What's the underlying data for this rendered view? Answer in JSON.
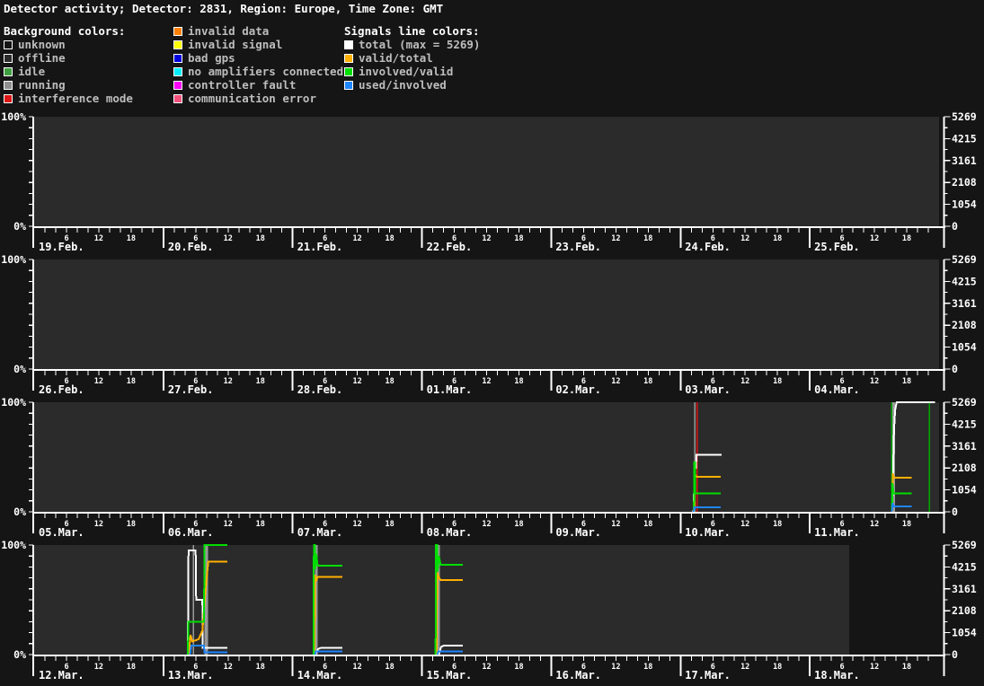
{
  "header": {
    "title": "Detector activity; Detector: 2831, Region: Europe, Time Zone: GMT"
  },
  "legend": {
    "background_header": "Background colors:",
    "signals_header": "Signals line colors:",
    "background_items_col1": [
      {
        "label": "unknown",
        "color": "#151515"
      },
      {
        "label": "offline",
        "color": "#2b2b2b"
      },
      {
        "label": "idle",
        "color": "#3ea03e"
      },
      {
        "label": "running",
        "color": "#8f8f8f"
      },
      {
        "label": "interference mode",
        "color": "#dd1515"
      }
    ],
    "background_items_col2": [
      {
        "label": "invalid data",
        "color": "#ff8000"
      },
      {
        "label": "invalid signal",
        "color": "#ffff00"
      },
      {
        "label": "bad gps",
        "color": "#0000dd"
      },
      {
        "label": "no amplifiers connected",
        "color": "#00eeff"
      },
      {
        "label": "controller fault",
        "color": "#ff00ff"
      },
      {
        "label": "communication error",
        "color": "#f4517c"
      }
    ],
    "signal_items": [
      {
        "label": "total (max = 5269)",
        "color": "#ffffff"
      },
      {
        "label": "valid/total",
        "color": "#ffb000"
      },
      {
        "label": "involved/valid",
        "color": "#00dd00"
      },
      {
        "label": "used/involved",
        "color": "#1e86ff"
      }
    ]
  },
  "colors": {
    "page_bg": "#151515",
    "offline": "#2b2b2b",
    "unknown": "#151515",
    "axis": "#ffffff",
    "total": "#ffffff",
    "valid_total": "#ffb000",
    "involved_valid": "#00dd00",
    "used_involved": "#1e86ff",
    "running_band": "#9a9a9a",
    "interference": "#dd1515",
    "idle_line": "#00a800"
  },
  "chart_data": {
    "type": "line",
    "description": "Detector activity over four weekly panels; left axis percent 0-100%, right axis absolute signal count (max = 5269), x ticks every 2 hours with labels at 6/12/18, one label per day.",
    "y_left": {
      "min_label": "0%",
      "max_label": "100%"
    },
    "y_right_labels": [
      "0",
      "1054",
      "2108",
      "3161",
      "4215",
      "5269"
    ],
    "y_right_max": 5269,
    "hour_ticks": [
      {
        "h": 6,
        "label": "6"
      },
      {
        "h": 12,
        "label": "12"
      },
      {
        "h": 18,
        "label": "18"
      }
    ],
    "panels": [
      {
        "name": "week-1",
        "dates": [
          "19.Feb.",
          "20.Feb.",
          "21.Feb.",
          "22.Feb.",
          "23.Feb.",
          "24.Feb.",
          "25.Feb."
        ],
        "bg": [
          {
            "from": 0,
            "to": 7,
            "key": "offline"
          }
        ],
        "vlines": [],
        "series": []
      },
      {
        "name": "week-2",
        "dates": [
          "26.Feb.",
          "27.Feb.",
          "28.Feb.",
          "01.Mar.",
          "02.Mar.",
          "03.Mar.",
          "04.Mar."
        ],
        "bg": [
          {
            "from": 0,
            "to": 7,
            "key": "offline"
          }
        ],
        "vlines": [],
        "series": []
      },
      {
        "name": "week-3",
        "dates": [
          "05.Mar.",
          "06.Mar.",
          "07.Mar.",
          "08.Mar.",
          "09.Mar.",
          "10.Mar.",
          "11.Mar."
        ],
        "bg": [
          {
            "from": 0,
            "to": 7,
            "key": "offline"
          }
        ],
        "vlines": [
          {
            "day": 5.11,
            "color_key": "running_band",
            "width": 1.5
          },
          {
            "day": 5.127,
            "color_key": "interference",
            "width": 1.5
          },
          {
            "day": 6.633,
            "color_key": "idle_line",
            "width": 1.5
          },
          {
            "day": 6.65,
            "color_key": "running_band",
            "width": 3
          },
          {
            "day": 6.924,
            "color_key": "idle_line",
            "width": 1.5
          }
        ],
        "series": [
          {
            "name": "total",
            "color_key": "total",
            "segments": [
              [
                [
                  5.1,
                  0
                ],
                [
                  5.105,
                  21
                ],
                [
                  5.11,
                  21
                ],
                [
                  5.113,
                  40
                ],
                [
                  5.119,
                  40
                ],
                [
                  5.124,
                  52
                ],
                [
                  5.317,
                  52
                ]
              ],
              [
                [
                  6.638,
                  0
                ],
                [
                  6.645,
                  40
                ],
                [
                  6.652,
                  75
                ],
                [
                  6.66,
                  93
                ],
                [
                  6.672,
                  100
                ],
                [
                  6.968,
                  100
                ]
              ]
            ]
          },
          {
            "name": "valid/total",
            "color_key": "valid_total",
            "segments": [
              [
                [
                  5.107,
                  0
                ],
                [
                  5.111,
                  35
                ],
                [
                  5.121,
                  32
                ],
                [
                  5.312,
                  32
                ]
              ],
              [
                [
                  6.637,
                  0
                ],
                [
                  6.642,
                  35
                ],
                [
                  6.652,
                  31
                ],
                [
                  6.787,
                  31
                ]
              ]
            ]
          },
          {
            "name": "involved/valid",
            "color_key": "involved_valid",
            "segments": [
              [
                [
                  5.104,
                  0
                ],
                [
                  5.106,
                  45
                ],
                [
                  5.111,
                  45
                ],
                [
                  5.114,
                  17
                ],
                [
                  5.312,
                  17
                ]
              ],
              [
                [
                  6.636,
                  0
                ],
                [
                  6.639,
                  26
                ],
                [
                  6.648,
                  17
                ],
                [
                  6.787,
                  17
                ]
              ]
            ]
          },
          {
            "name": "used/involved",
            "color_key": "used_involved",
            "segments": [
              [
                [
                  5.103,
                  0
                ],
                [
                  5.107,
                  4
                ],
                [
                  5.312,
                  4
                ]
              ],
              [
                [
                  6.636,
                  0
                ],
                [
                  6.641,
                  8
                ],
                [
                  6.65,
                  5
                ],
                [
                  6.787,
                  5
                ]
              ]
            ]
          }
        ]
      },
      {
        "name": "week-4",
        "dates": [
          "12.Mar.",
          "13.Mar.",
          "14.Mar.",
          "15.Mar.",
          "16.Mar.",
          "17.Mar.",
          "18.Mar."
        ],
        "bg": [
          {
            "from": 0,
            "to": 6.305,
            "key": "offline"
          },
          {
            "from": 6.305,
            "to": 7,
            "key": "unknown"
          }
        ],
        "vlines": [
          {
            "day": 1.231,
            "color_key": "running_band",
            "width": 1.5
          },
          {
            "day": 1.33,
            "color_key": "running_band",
            "width": 4
          },
          {
            "day": 2.181,
            "color_key": "running_band",
            "width": 3
          },
          {
            "day": 3.127,
            "color_key": "running_band",
            "width": 3
          }
        ],
        "series": [
          {
            "name": "total",
            "color_key": "total",
            "segments": [
              [
                [
                  1.189,
                  0
                ],
                [
                  1.194,
                  95
                ],
                [
                  1.249,
                  95
                ],
                [
                  1.253,
                  50
                ],
                [
                  1.301,
                  50
                ],
                [
                  1.305,
                  6
                ],
                [
                  1.495,
                  6
                ]
              ],
              [
                [
                  2.176,
                  0
                ],
                [
                  2.196,
                  5
                ],
                [
                  2.215,
                  6
                ],
                [
                  2.385,
                  6
                ]
              ],
              [
                [
                  3.13,
                  0
                ],
                [
                  3.148,
                  7
                ],
                [
                  3.165,
                  8
                ],
                [
                  3.317,
                  8
                ]
              ]
            ]
          },
          {
            "name": "valid/total",
            "color_key": "valid_total",
            "segments": [
              [
                [
                  1.197,
                  0
                ],
                [
                  1.209,
                  18
                ],
                [
                  1.224,
                  12
                ],
                [
                  1.272,
                  14
                ],
                [
                  1.302,
                  22
                ],
                [
                  1.323,
                  55
                ],
                [
                  1.347,
                  85
                ],
                [
                  1.495,
                  85
                ]
              ],
              [
                [
                  2.169,
                  0
                ],
                [
                  2.173,
                  73
                ],
                [
                  2.181,
                  67
                ],
                [
                  2.192,
                  71
                ],
                [
                  2.385,
                  71
                ]
              ],
              [
                [
                  3.113,
                  0
                ],
                [
                  3.118,
                  75
                ],
                [
                  3.133,
                  70
                ],
                [
                  3.144,
                  68
                ],
                [
                  3.317,
                  68
                ]
              ]
            ]
          },
          {
            "name": "involved/valid",
            "color_key": "involved_valid",
            "segments": [
              [
                [
                  1.189,
                  0
                ],
                [
                  1.193,
                  30
                ],
                [
                  1.314,
                  30
                ],
                [
                  1.318,
                  100
                ],
                [
                  1.495,
                  100
                ]
              ],
              [
                [
                  2.161,
                  0
                ],
                [
                  2.164,
                  100
                ],
                [
                  2.171,
                  100
                ],
                [
                  2.175,
                  78
                ],
                [
                  2.182,
                  92
                ],
                [
                  2.193,
                  81
                ],
                [
                  2.385,
                  81
                ]
              ],
              [
                [
                  3.105,
                  0
                ],
                [
                  3.108,
                  100
                ],
                [
                  3.117,
                  100
                ],
                [
                  3.121,
                  76
                ],
                [
                  3.131,
                  90
                ],
                [
                  3.144,
                  82
                ],
                [
                  3.317,
                  82
                ]
              ]
            ]
          },
          {
            "name": "used/involved",
            "color_key": "used_involved",
            "segments": [
              [
                [
                  1.206,
                  0
                ],
                [
                  1.216,
                  8
                ],
                [
                  1.314,
                  8
                ],
                [
                  1.318,
                  2
                ],
                [
                  1.495,
                  2
                ]
              ],
              [
                [
                  2.173,
                  0
                ],
                [
                  2.18,
                  3
                ],
                [
                  2.385,
                  3
                ]
              ],
              [
                [
                  3.119,
                  0
                ],
                [
                  3.126,
                  3
                ],
                [
                  3.317,
                  3
                ]
              ]
            ]
          }
        ]
      }
    ]
  }
}
